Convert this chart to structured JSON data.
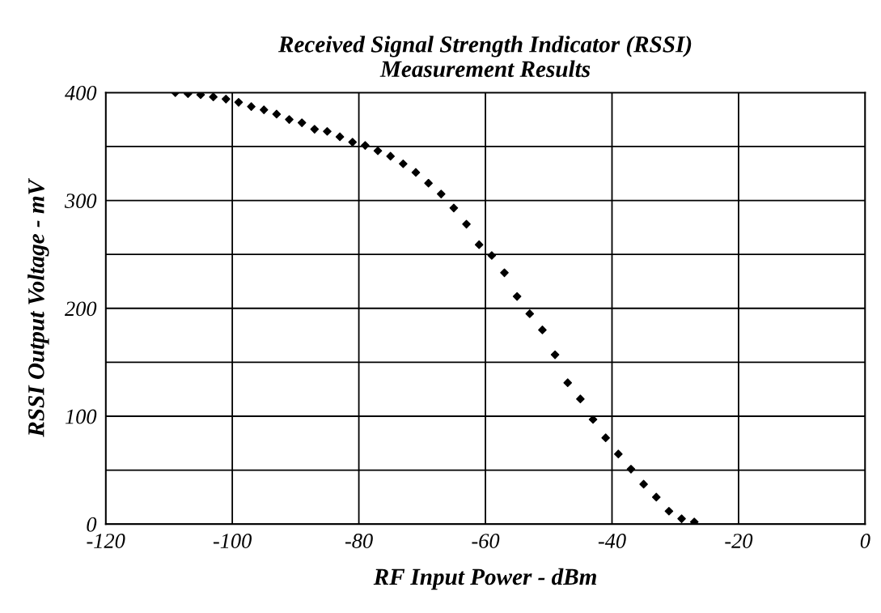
{
  "chart_data": {
    "type": "scatter",
    "title": "Received Signal Strength Indicator (RSSI)\nMeasurement Results",
    "xlabel": "RF Input Power - dBm",
    "ylabel": "RSSI Output Voltage - mV",
    "x": [
      -109,
      -107,
      -105,
      -103,
      -101,
      -99,
      -97,
      -95,
      -93,
      -91,
      -89,
      -87,
      -85,
      -83,
      -81,
      -79,
      -77,
      -75,
      -73,
      -71,
      -69,
      -67,
      -65,
      -63,
      -61,
      -59,
      -57,
      -55,
      -53,
      -51,
      -49,
      -47,
      -45,
      -43,
      -41,
      -39,
      -37,
      -35,
      -33,
      -31,
      -29,
      -27
    ],
    "series": [
      {
        "color": "#000000",
        "values": [
          400,
          399,
          398,
          396,
          394,
          391,
          387,
          384,
          380,
          375,
          372,
          366,
          364,
          359,
          354,
          351,
          346,
          341,
          334,
          326,
          316,
          306,
          293,
          278,
          259,
          249,
          233,
          211,
          195,
          180,
          157,
          131,
          116,
          97,
          80,
          65,
          51,
          37,
          25,
          12,
          5,
          2
        ]
      }
    ],
    "xlim": [
      -120,
      0
    ],
    "xticks": [
      -120,
      -100,
      -80,
      -60,
      -40,
      -20,
      0
    ],
    "ylim": [
      0,
      400
    ],
    "yticks": [
      0,
      {
        "value": 50,
        "label": null
      },
      100,
      {
        "value": 150,
        "label": null
      },
      200,
      {
        "value": 250,
        "label": null
      },
      300,
      {
        "value": 350,
        "label": null
      },
      400
    ],
    "grid": true,
    "marker": "diamond",
    "legend": false
  }
}
